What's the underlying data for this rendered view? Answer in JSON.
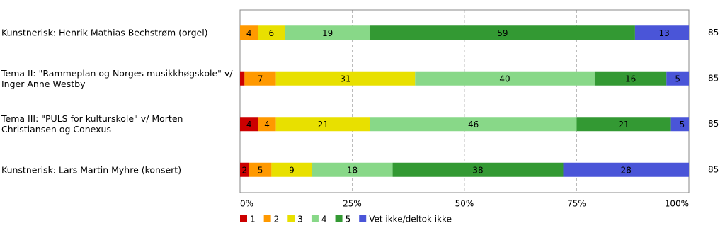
{
  "chart_data": {
    "type": "stacked-bar-horizontal",
    "categories": [
      "Kunstnerisk: Henrik Mathias Bechstrøm (orgel)",
      "Tema II: \"Rammeplan og Norges musikkhøgskole\" v/ Inger Anne Westby",
      "Tema III: \"PULS for kulturskole\" v/ Morten Christiansen og Conexus",
      "Kunstnerisk: Lars Martin Myhre (konsert)"
    ],
    "series": [
      {
        "name": "1",
        "color": "#cc0000",
        "values": [
          0,
          1,
          4,
          2
        ]
      },
      {
        "name": "2",
        "color": "#ff9900",
        "values": [
          4,
          7,
          4,
          5
        ]
      },
      {
        "name": "3",
        "color": "#e8e000",
        "values": [
          6,
          31,
          21,
          9
        ]
      },
      {
        "name": "4",
        "color": "#88d888",
        "values": [
          19,
          40,
          46,
          18
        ]
      },
      {
        "name": "5",
        "color": "#339933",
        "values": [
          59,
          16,
          21,
          38
        ]
      },
      {
        "name": "Vet ikke/deltok ikke",
        "color": "#4a55d8",
        "values": [
          13,
          5,
          5,
          28
        ]
      }
    ],
    "n": [
      85,
      85,
      85,
      85
    ],
    "xlim": [
      0,
      100
    ],
    "xticks": [
      {
        "value": 0,
        "label": "0%"
      },
      {
        "value": 25,
        "label": "25%"
      },
      {
        "value": 50,
        "label": "50%"
      },
      {
        "value": 75,
        "label": "75%"
      },
      {
        "value": 100,
        "label": "100%"
      }
    ],
    "grid": true
  }
}
